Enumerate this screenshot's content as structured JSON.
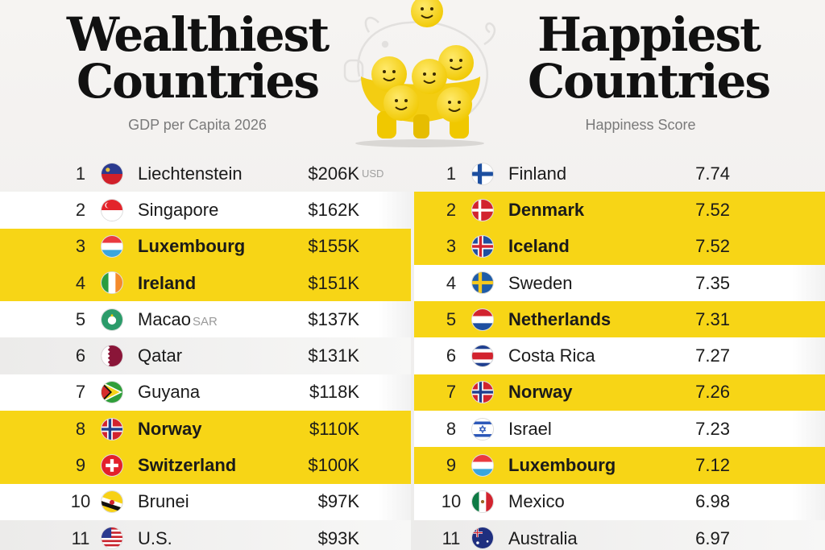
{
  "chart_data": [
    {
      "type": "table",
      "title_lines": [
        "Wealthiest",
        "Countries"
      ],
      "subtitle": "GDP per Capita 2026",
      "unit_label": "USD",
      "rows": [
        {
          "rank": "1",
          "country": "Liechtenstein",
          "suffix": "",
          "value": "$206K",
          "value_k": 206,
          "highlight": false,
          "flag": "liechtenstein-flag-icon"
        },
        {
          "rank": "2",
          "country": "Singapore",
          "suffix": "",
          "value": "$162K",
          "value_k": 162,
          "highlight": false,
          "flag": "singapore-flag-icon"
        },
        {
          "rank": "3",
          "country": "Luxembourg",
          "suffix": "",
          "value": "$155K",
          "value_k": 155,
          "highlight": true,
          "flag": "luxembourg-flag-icon"
        },
        {
          "rank": "4",
          "country": "Ireland",
          "suffix": "",
          "value": "$151K",
          "value_k": 151,
          "highlight": true,
          "flag": "ireland-flag-icon"
        },
        {
          "rank": "5",
          "country": "Macao",
          "suffix": "SAR",
          "value": "$137K",
          "value_k": 137,
          "highlight": false,
          "flag": "macao-flag-icon"
        },
        {
          "rank": "6",
          "country": "Qatar",
          "suffix": "",
          "value": "$131K",
          "value_k": 131,
          "highlight": false,
          "flag": "qatar-flag-icon"
        },
        {
          "rank": "7",
          "country": "Guyana",
          "suffix": "",
          "value": "$118K",
          "value_k": 118,
          "highlight": false,
          "flag": "guyana-flag-icon"
        },
        {
          "rank": "8",
          "country": "Norway",
          "suffix": "",
          "value": "$110K",
          "value_k": 110,
          "highlight": true,
          "flag": "norway-flag-icon"
        },
        {
          "rank": "9",
          "country": "Switzerland",
          "suffix": "",
          "value": "$100K",
          "value_k": 100,
          "highlight": true,
          "flag": "switzerland-flag-icon"
        },
        {
          "rank": "10",
          "country": "Brunei",
          "suffix": "",
          "value": "$97K",
          "value_k": 97,
          "highlight": false,
          "flag": "brunei-flag-icon"
        },
        {
          "rank": "11",
          "country": "U.S.",
          "suffix": "",
          "value": "$93K",
          "value_k": 93,
          "highlight": false,
          "flag": "us-flag-icon"
        }
      ]
    },
    {
      "type": "table",
      "title_lines": [
        "Happiest",
        "Countries"
      ],
      "subtitle": "Happiness Score",
      "rows": [
        {
          "rank": "1",
          "country": "Finland",
          "suffix": "",
          "value": "7.74",
          "score": 7.74,
          "highlight": false,
          "flag": "finland-flag-icon"
        },
        {
          "rank": "2",
          "country": "Denmark",
          "suffix": "",
          "value": "7.52",
          "score": 7.52,
          "highlight": true,
          "flag": "denmark-flag-icon"
        },
        {
          "rank": "3",
          "country": "Iceland",
          "suffix": "",
          "value": "7.52",
          "score": 7.52,
          "highlight": true,
          "flag": "iceland-flag-icon"
        },
        {
          "rank": "4",
          "country": "Sweden",
          "suffix": "",
          "value": "7.35",
          "score": 7.35,
          "highlight": false,
          "flag": "sweden-flag-icon"
        },
        {
          "rank": "5",
          "country": "Netherlands",
          "suffix": "",
          "value": "7.31",
          "score": 7.31,
          "highlight": true,
          "flag": "netherlands-flag-icon"
        },
        {
          "rank": "6",
          "country": "Costa Rica",
          "suffix": "",
          "value": "7.27",
          "score": 7.27,
          "highlight": false,
          "flag": "costa-rica-flag-icon"
        },
        {
          "rank": "7",
          "country": "Norway",
          "suffix": "",
          "value": "7.26",
          "score": 7.26,
          "highlight": true,
          "flag": "norway-flag-icon"
        },
        {
          "rank": "8",
          "country": "Israel",
          "suffix": "",
          "value": "7.23",
          "score": 7.23,
          "highlight": false,
          "flag": "israel-flag-icon"
        },
        {
          "rank": "9",
          "country": "Luxembourg",
          "suffix": "",
          "value": "7.12",
          "score": 7.12,
          "highlight": true,
          "flag": "luxembourg-flag-icon"
        },
        {
          "rank": "10",
          "country": "Mexico",
          "suffix": "",
          "value": "6.98",
          "score": 6.98,
          "highlight": false,
          "flag": "mexico-flag-icon"
        },
        {
          "rank": "11",
          "country": "Australia",
          "suffix": "",
          "value": "6.97",
          "score": 6.97,
          "highlight": false,
          "flag": "australia-flag-icon"
        }
      ]
    }
  ],
  "colors": {
    "highlight": "#f7d516",
    "coin": "#f5d21e",
    "title": "#111111",
    "subtitle": "#7a7a7a"
  },
  "illustration": "piggy-bank-icon"
}
